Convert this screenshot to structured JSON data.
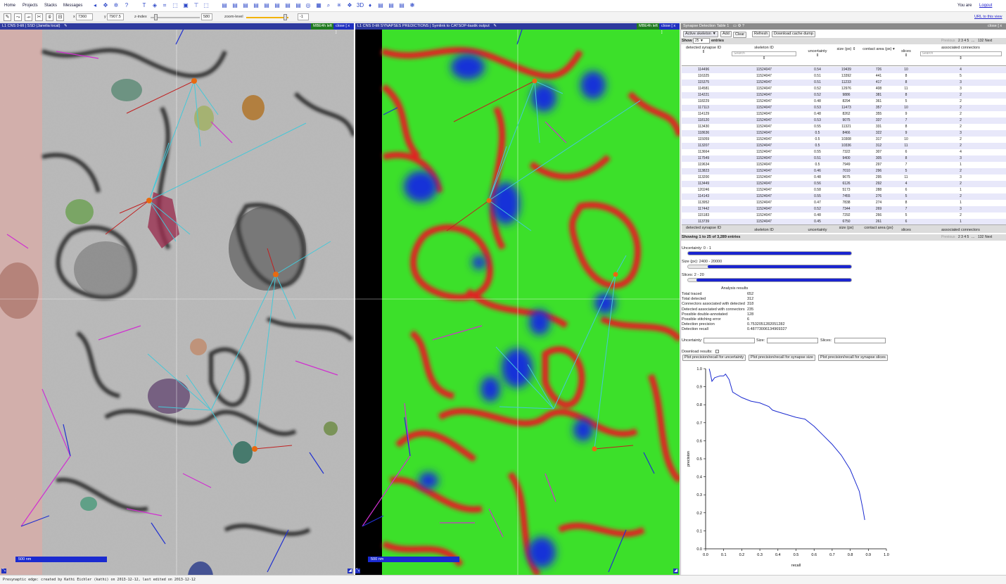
{
  "topmenu": {
    "home": "Home",
    "projects": "Projects",
    "stacks": "Stacks",
    "messages": "Messages",
    "you_are": "You are",
    "logout": "Logout",
    "url_link": "URL to this view"
  },
  "nav": {
    "x_label": "x",
    "x_value": "7360",
    "y_label": "y",
    "y_value": "7907.5",
    "z_label": "z-index",
    "z_value": "580",
    "zoom_label": "zoom-level",
    "zoom_value": "-1"
  },
  "left_panel": {
    "title": "L1 CNS 0-tilt | SSD (Janelia local)",
    "edit_mode": "MBE4h left",
    "close": "close [ x ]",
    "scale": "500 nm"
  },
  "mid_panel": {
    "title": "L1 CNS 0-tilt SYNAPSES PREDICTIONS | Symlink to CATSOP-tiastik output",
    "edit_mode": "MBE4h left",
    "close": "close [ x ]",
    "scale": "500 nm"
  },
  "widget": {
    "title": "Synapse Detection Table 1",
    "close": "close [ x ]",
    "active_skeleton": "Active skeleton",
    "add": "Add",
    "clear": "Clear",
    "refresh": "Refresh",
    "download_cache": "Download cache dump",
    "show": "Show",
    "show_n": "25",
    "entries": "entries",
    "search_ph": "Search",
    "pager_prev": "Previous",
    "pager_pages": "2 3 4 5",
    "pager_dots": "...",
    "pager_last": "132",
    "pager_next": "Next",
    "info": "Showing 1 to 25 of 3,289 entries"
  },
  "columns": [
    "detected synapse ID",
    "skeleton ID",
    "uncertainty",
    "size (px)",
    "contact area (px)",
    "slices",
    "associated connectors"
  ],
  "rows": [
    [
      "114496",
      "11524047",
      "0.54",
      "19439",
      "726",
      "10",
      "4"
    ],
    [
      "116325",
      "11524047",
      "0.51",
      "13392",
      "441",
      "8",
      "5"
    ],
    [
      "115375",
      "11524047",
      "0.51",
      "11233",
      "417",
      "8",
      "3"
    ],
    [
      "114581",
      "11524047",
      "0.52",
      "12976",
      "408",
      "11",
      "3"
    ],
    [
      "114221",
      "11524047",
      "0.52",
      "9886",
      "381",
      "8",
      "2"
    ],
    [
      "118229",
      "11524047",
      "0.48",
      "8294",
      "361",
      "5",
      "2"
    ],
    [
      "117113",
      "11524047",
      "0.53",
      "11473",
      "357",
      "10",
      "2"
    ],
    [
      "114129",
      "11524047",
      "0.48",
      "8262",
      "355",
      "9",
      "2"
    ],
    [
      "118120",
      "11524047",
      "0.53",
      "9075",
      "337",
      "7",
      "2"
    ],
    [
      "113430",
      "11524047",
      "0.55",
      "11321",
      "331",
      "8",
      "2"
    ],
    [
      "118636",
      "11524047",
      "0.5",
      "8466",
      "322",
      "9",
      "3"
    ],
    [
      "115059",
      "11524047",
      "0.5",
      "10308",
      "317",
      "10",
      "2"
    ],
    [
      "113207",
      "11524047",
      "0.5",
      "10336",
      "312",
      "11",
      "2"
    ],
    [
      "113664",
      "11524047",
      "0.55",
      "7322",
      "307",
      "6",
      "4"
    ],
    [
      "117549",
      "11524047",
      "0.51",
      "9400",
      "305",
      "8",
      "3"
    ],
    [
      "119634",
      "11524047",
      "0.5",
      "7949",
      "297",
      "7",
      "1"
    ],
    [
      "113823",
      "11524047",
      "0.46",
      "7010",
      "296",
      "5",
      "2"
    ],
    [
      "113200",
      "11524047",
      "0.48",
      "9675",
      "295",
      "11",
      "3"
    ],
    [
      "113449",
      "11524047",
      "0.56",
      "6126",
      "292",
      "4",
      "2"
    ],
    [
      "120246",
      "11524047",
      "0.58",
      "5173",
      "288",
      "6",
      "1"
    ],
    [
      "114143",
      "11524047",
      "0.55",
      "7455",
      "276",
      "5",
      "2"
    ],
    [
      "113952",
      "11524047",
      "0.47",
      "7838",
      "274",
      "8",
      "1"
    ],
    [
      "117442",
      "11524047",
      "0.52",
      "7344",
      "269",
      "7",
      "3"
    ],
    [
      "115183",
      "11524047",
      "0.48",
      "7292",
      "266",
      "5",
      "2"
    ],
    [
      "113739",
      "11524047",
      "0.45",
      "6750",
      "261",
      "6",
      "1"
    ]
  ],
  "filters": {
    "uncertainty_label": "Uncertainty: 0 - 1",
    "uncertainty_range": [
      0,
      1
    ],
    "size_label": "Size (px): 2400 - 20000",
    "size_range": [
      0.12,
      1
    ],
    "slices_label": "Slices: 2 - 20",
    "slices_range": [
      0.05,
      1
    ]
  },
  "analysis": {
    "title": "Analysis results",
    "items": [
      [
        "Total traced",
        "652"
      ],
      [
        "Total detected",
        "312"
      ],
      [
        "Connectors associated with detected",
        "318"
      ],
      [
        "Detected associated with connectors",
        "235"
      ],
      [
        "Possible double-annotated",
        "128"
      ],
      [
        "Possible stitching error",
        "6"
      ],
      [
        "Detection precision",
        "0.7532051282051282"
      ],
      [
        "Detection recall",
        "0.48773006134969327"
      ]
    ]
  },
  "inputs": {
    "uncertainty": "Uncertainty:",
    "size": "Size:",
    "slices": "Slices:"
  },
  "download": {
    "label": "Download results:",
    "btn1": "Plot precision/recall for uncertainty",
    "btn2": "Plot precision/recall for synapse size",
    "btn3": "Plot precision/recall for synapse slices"
  },
  "colors": {
    "title_bar": "#2e3a9e",
    "curve": "#1a2ad0",
    "edit_mode": "#1f7a1f"
  },
  "chart_data": {
    "type": "line",
    "xlabel": "recall",
    "ylabel": "precision",
    "xlim": [
      0,
      1
    ],
    "ylim": [
      0,
      1
    ],
    "xticks": [
      "0.0",
      "0.1",
      "0.2",
      "0.3",
      "0.4",
      "0.5",
      "0.6",
      "0.7",
      "0.8",
      "0.9",
      "1.0"
    ],
    "yticks": [
      "0.0",
      "0.1",
      "0.2",
      "0.3",
      "0.4",
      "0.5",
      "0.6",
      "0.7",
      "0.8",
      "0.9",
      "1.0"
    ],
    "series": [
      {
        "x": [
          0.02,
          0.025,
          0.035,
          0.05,
          0.08,
          0.1,
          0.11,
          0.13,
          0.15,
          0.2,
          0.25,
          0.3,
          0.35,
          0.37,
          0.4,
          0.5,
          0.55,
          0.6,
          0.65,
          0.7,
          0.75,
          0.8,
          0.85,
          0.87,
          0.88
        ],
        "y": [
          1.0,
          0.98,
          0.93,
          0.95,
          0.96,
          0.96,
          0.97,
          0.94,
          0.87,
          0.84,
          0.82,
          0.81,
          0.79,
          0.77,
          0.76,
          0.73,
          0.72,
          0.68,
          0.63,
          0.58,
          0.52,
          0.44,
          0.32,
          0.22,
          0.16
        ]
      }
    ]
  },
  "status": "Presynaptic edge: created by Kathi Eichler (kathi) on 2013-12-12, last edited on 2013-12-12"
}
